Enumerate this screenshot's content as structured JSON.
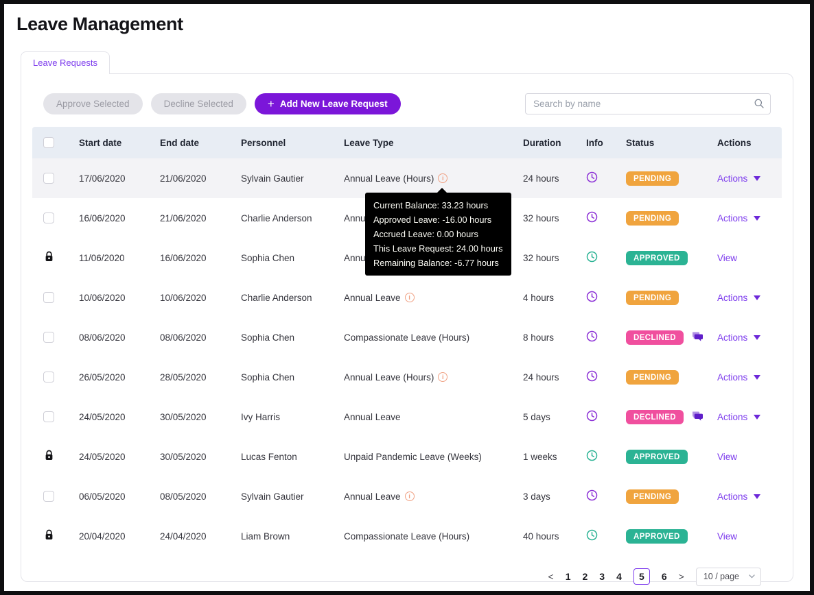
{
  "page": {
    "title": "Leave Management"
  },
  "tabs": [
    {
      "label": "Leave Requests",
      "active": true
    }
  ],
  "toolbar": {
    "approve_label": "Approve Selected",
    "decline_label": "Decline Selected",
    "add_label": "Add New Leave Request",
    "search_placeholder": "Search by name"
  },
  "colors": {
    "accent": "#7b16d9",
    "link": "#7c3aed",
    "status": {
      "PENDING": "#f0a43e",
      "APPROVED": "#2bb394",
      "DECLINED": "#f04f9e"
    },
    "clock_pending": "#8b2fd6",
    "clock_approved": "#2bb394",
    "info_icon": "#f0a183",
    "header_bg": "#e8edf4",
    "tooltip_bg": "#000000"
  },
  "icons": {
    "plus-icon": "+",
    "search-icon": "magnifier",
    "lock-icon": "padlock",
    "clock-icon": "clock",
    "info-icon": "i",
    "comment-icon": "speech-bubbles",
    "caret-down-icon": "▼",
    "prev-icon": "<",
    "next-icon": ">"
  },
  "table": {
    "columns": [
      "",
      "Start date",
      "End date",
      "Personnel",
      "Leave Type",
      "Duration",
      "Info",
      "Status",
      "Actions"
    ],
    "rows": [
      {
        "select": "checkbox",
        "start": "17/06/2020",
        "end": "21/06/2020",
        "personnel": "Sylvain Gautier",
        "leave_type": "Annual Leave (Hours)",
        "info_icon": true,
        "duration": "24 hours",
        "status": "PENDING",
        "comment": false,
        "action": "Actions",
        "highlighted": true
      },
      {
        "select": "checkbox",
        "start": "16/06/2020",
        "end": "21/06/2020",
        "personnel": "Charlie Anderson",
        "leave_type": "Annual Leave (Hours)",
        "info_icon": false,
        "duration": "32 hours",
        "status": "PENDING",
        "comment": false,
        "action": "Actions",
        "highlighted": false
      },
      {
        "select": "lock",
        "start": "11/06/2020",
        "end": "16/06/2020",
        "personnel": "Sophia Chen",
        "leave_type": "Annual Leave (Hours)",
        "info_icon": false,
        "duration": "32 hours",
        "status": "APPROVED",
        "comment": false,
        "action": "View",
        "highlighted": false
      },
      {
        "select": "checkbox",
        "start": "10/06/2020",
        "end": "10/06/2020",
        "personnel": "Charlie Anderson",
        "leave_type": "Annual Leave",
        "info_icon": true,
        "duration": "4 hours",
        "status": "PENDING",
        "comment": false,
        "action": "Actions",
        "highlighted": false
      },
      {
        "select": "checkbox",
        "start": "08/06/2020",
        "end": "08/06/2020",
        "personnel": "Sophia Chen",
        "leave_type": "Compassionate Leave (Hours)",
        "info_icon": false,
        "duration": "8 hours",
        "status": "DECLINED",
        "comment": true,
        "action": "Actions",
        "highlighted": false
      },
      {
        "select": "checkbox",
        "start": "26/05/2020",
        "end": "28/05/2020",
        "personnel": "Sophia Chen",
        "leave_type": "Annual Leave (Hours)",
        "info_icon": true,
        "duration": "24 hours",
        "status": "PENDING",
        "comment": false,
        "action": "Actions",
        "highlighted": false
      },
      {
        "select": "checkbox",
        "start": "24/05/2020",
        "end": "30/05/2020",
        "personnel": "Ivy Harris",
        "leave_type": "Annual Leave",
        "info_icon": false,
        "duration": "5 days",
        "status": "DECLINED",
        "comment": true,
        "action": "Actions",
        "highlighted": false
      },
      {
        "select": "lock",
        "start": "24/05/2020",
        "end": "30/05/2020",
        "personnel": "Lucas Fenton",
        "leave_type": "Unpaid Pandemic Leave (Weeks)",
        "info_icon": false,
        "duration": "1 weeks",
        "status": "APPROVED",
        "comment": false,
        "action": "View",
        "highlighted": false
      },
      {
        "select": "checkbox",
        "start": "06/05/2020",
        "end": "08/05/2020",
        "personnel": "Sylvain Gautier",
        "leave_type": "Annual Leave",
        "info_icon": true,
        "duration": "3 days",
        "status": "PENDING",
        "comment": false,
        "action": "Actions",
        "highlighted": false
      },
      {
        "select": "lock",
        "start": "20/04/2020",
        "end": "24/04/2020",
        "personnel": "Liam Brown",
        "leave_type": "Compassionate Leave (Hours)",
        "info_icon": false,
        "duration": "40 hours",
        "status": "APPROVED",
        "comment": false,
        "action": "View",
        "highlighted": false
      }
    ]
  },
  "tooltip": {
    "lines": [
      "Current Balance: 33.23 hours",
      "Approved Leave: -16.00 hours",
      "Accrued Leave: 0.00 hours",
      "This Leave Request: 24.00 hours",
      "Remaining Balance: -6.77 hours"
    ]
  },
  "pagination": {
    "prev": "<",
    "next": ">",
    "pages": [
      "1",
      "2",
      "3",
      "4",
      "5",
      "6"
    ],
    "current": "5",
    "page_size_label": "10 / page"
  }
}
